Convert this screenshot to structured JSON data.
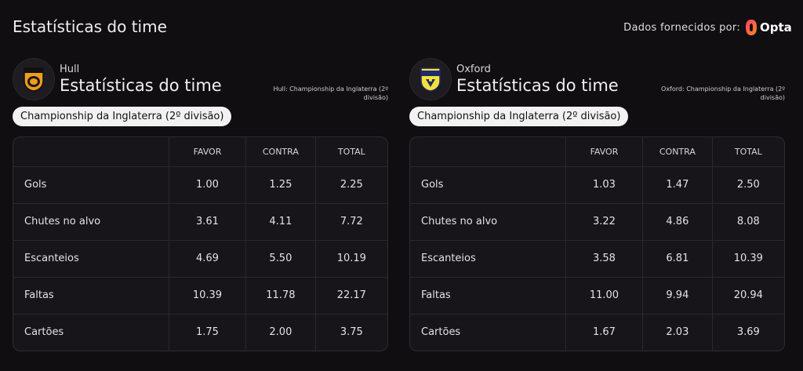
{
  "header": {
    "title": "Estatísticas do time",
    "provider_text": "Dados fornecidos por:",
    "provider_brand": "Opta"
  },
  "panels": [
    {
      "team": "Hull",
      "title": "Estatísticas do time",
      "note": "Hull: Championship da Inglaterra (2º divisão)",
      "league": "Championship da Inglaterra (2º divisão)",
      "table": {
        "columns": [
          "FAVOR",
          "CONTRA",
          "TOTAL"
        ],
        "rows": [
          {
            "label": "Gols",
            "values": [
              "1.00",
              "1.25",
              "2.25"
            ]
          },
          {
            "label": "Chutes no alvo",
            "values": [
              "3.61",
              "4.11",
              "7.72"
            ]
          },
          {
            "label": "Escanteios",
            "values": [
              "4.69",
              "5.50",
              "10.19"
            ]
          },
          {
            "label": "Faltas",
            "values": [
              "10.39",
              "11.78",
              "22.17"
            ]
          },
          {
            "label": "Cartões",
            "values": [
              "1.75",
              "2.00",
              "3.75"
            ]
          }
        ]
      }
    },
    {
      "team": "Oxford",
      "title": "Estatísticas do time",
      "note": "Oxford: Championship da Inglaterra (2º divisão)",
      "league": "Championship da Inglaterra (2º divisão)",
      "table": {
        "columns": [
          "FAVOR",
          "CONTRA",
          "TOTAL"
        ],
        "rows": [
          {
            "label": "Gols",
            "values": [
              "1.03",
              "1.47",
              "2.50"
            ]
          },
          {
            "label": "Chutes no alvo",
            "values": [
              "3.22",
              "4.86",
              "8.08"
            ]
          },
          {
            "label": "Escanteios",
            "values": [
              "3.58",
              "6.81",
              "10.39"
            ]
          },
          {
            "label": "Faltas",
            "values": [
              "11.00",
              "9.94",
              "20.94"
            ]
          },
          {
            "label": "Cartões",
            "values": [
              "1.67",
              "2.03",
              "3.69"
            ]
          }
        ]
      }
    }
  ]
}
